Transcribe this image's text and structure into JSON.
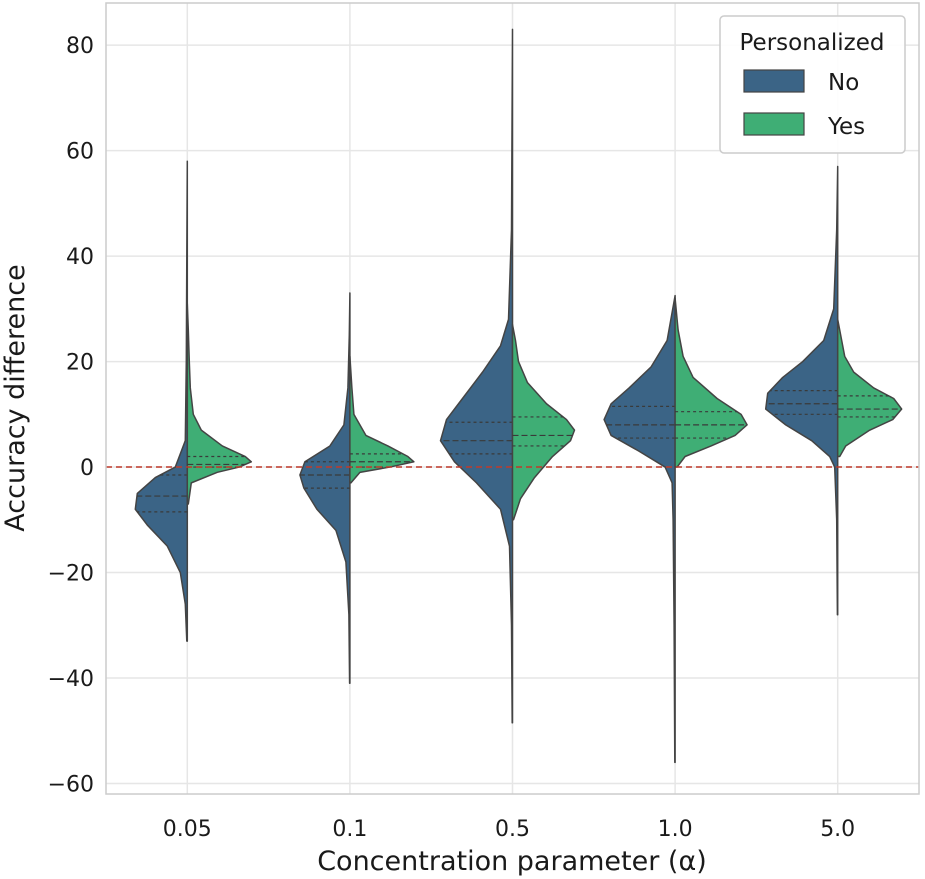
{
  "chart_data": {
    "type": "violin",
    "xlabel": "Concentration parameter (α)",
    "ylabel": "Accuracy difference",
    "categories": [
      "0.05",
      "0.1",
      "0.5",
      "1.0",
      "5.0"
    ],
    "ylim": [
      -62,
      88
    ],
    "yticks": [
      -60,
      -40,
      -20,
      0,
      20,
      40,
      60,
      80
    ],
    "ytick_labels": [
      "−60",
      "−40",
      "−20",
      "0",
      "20",
      "40",
      "60",
      "80"
    ],
    "grid": true,
    "reference_line": {
      "y": 0,
      "color": "#c0392b",
      "style": "dashed"
    },
    "legend": {
      "title": "Personalized",
      "position": "top-right",
      "entries": [
        {
          "label": "No",
          "color": "#3b6486"
        },
        {
          "label": "Yes",
          "color": "#3fae75"
        }
      ]
    },
    "series": [
      {
        "name": "No",
        "color": "#3b6486",
        "side": "left",
        "violins": [
          {
            "min": -33,
            "max": 58,
            "q1": -8.5,
            "median": -5.5,
            "q3": -1.5,
            "profile": [
              [
                -33,
                0.5
              ],
              [
                -26,
                2
              ],
              [
                -20,
                7
              ],
              [
                -15,
                20
              ],
              [
                -11,
                40
              ],
              [
                -8,
                52
              ],
              [
                -5,
                50
              ],
              [
                -2,
                32
              ],
              [
                0,
                12
              ],
              [
                5,
                2
              ],
              [
                20,
                1
              ],
              [
                40,
                0.5
              ],
              [
                58,
                0
              ]
            ]
          },
          {
            "min": -41,
            "max": 33,
            "q1": -4,
            "median": -1.5,
            "q3": 1,
            "profile": [
              [
                -41,
                0.3
              ],
              [
                -28,
                1
              ],
              [
                -18,
                4
              ],
              [
                -12,
                14
              ],
              [
                -8,
                33
              ],
              [
                -4,
                46
              ],
              [
                -1.5,
                50
              ],
              [
                1,
                45
              ],
              [
                4,
                20
              ],
              [
                8,
                6
              ],
              [
                15,
                2
              ],
              [
                25,
                0.6
              ],
              [
                33,
                0
              ]
            ]
          },
          {
            "min": -48.5,
            "max": 83,
            "q1": 2.5,
            "median": 5,
            "q3": 8.5,
            "profile": [
              [
                -48.5,
                0.3
              ],
              [
                -30,
                1
              ],
              [
                -15,
                3
              ],
              [
                -8,
                12
              ],
              [
                -3,
                36
              ],
              [
                1,
                58
              ],
              [
                5,
                72
              ],
              [
                9,
                66
              ],
              [
                13,
                50
              ],
              [
                18,
                30
              ],
              [
                23,
                12
              ],
              [
                28,
                4
              ],
              [
                45,
                1
              ],
              [
                83,
                0
              ]
            ]
          },
          {
            "min": -56,
            "max": 32.5,
            "q1": 5.5,
            "median": 8,
            "q3": 11.5,
            "profile": [
              [
                -56,
                0.3
              ],
              [
                -30,
                1
              ],
              [
                -10,
                2
              ],
              [
                -3,
                3
              ],
              [
                0,
                10
              ],
              [
                3,
                36
              ],
              [
                6,
                64
              ],
              [
                9,
                71
              ],
              [
                12,
                64
              ],
              [
                15,
                46
              ],
              [
                19,
                24
              ],
              [
                24,
                8
              ],
              [
                32.5,
                0
              ]
            ]
          },
          {
            "min": -28,
            "max": 57,
            "q1": 10,
            "median": 12,
            "q3": 14.5,
            "profile": [
              [
                -28,
                0.3
              ],
              [
                -10,
                1
              ],
              [
                0,
                3
              ],
              [
                2,
                8
              ],
              [
                5,
                26
              ],
              [
                8,
                52
              ],
              [
                11,
                72
              ],
              [
                14,
                70
              ],
              [
                17,
                55
              ],
              [
                20,
                35
              ],
              [
                24,
                14
              ],
              [
                30,
                4
              ],
              [
                45,
                1
              ],
              [
                57,
                0
              ]
            ]
          }
        ]
      },
      {
        "name": "Yes",
        "color": "#3fae75",
        "side": "right",
        "violins": [
          {
            "min": -7,
            "max": 31,
            "q1": 0,
            "median": 0.5,
            "q3": 2,
            "profile": [
              [
                -7,
                1
              ],
              [
                -3,
                4
              ],
              [
                -1,
                30
              ],
              [
                0,
                52
              ],
              [
                1,
                64
              ],
              [
                2,
                58
              ],
              [
                4,
                35
              ],
              [
                7,
                14
              ],
              [
                10,
                6
              ],
              [
                15,
                3
              ],
              [
                20,
                2
              ],
              [
                26,
                1
              ],
              [
                31,
                0
              ]
            ]
          },
          {
            "min": -3,
            "max": 21,
            "q1": 0,
            "median": 1,
            "q3": 2.5,
            "profile": [
              [
                -3,
                1
              ],
              [
                -1,
                10
              ],
              [
                0,
                40
              ],
              [
                1,
                64
              ],
              [
                2,
                58
              ],
              [
                4,
                38
              ],
              [
                6,
                16
              ],
              [
                10,
                4
              ],
              [
                15,
                2
              ],
              [
                21,
                0
              ]
            ]
          },
          {
            "min": -10,
            "max": 27,
            "q1": 4,
            "median": 6,
            "q3": 9.5,
            "profile": [
              [
                -10,
                1
              ],
              [
                -6,
                8
              ],
              [
                -2,
                22
              ],
              [
                2,
                40
              ],
              [
                5,
                58
              ],
              [
                7,
                62
              ],
              [
                9,
                54
              ],
              [
                12,
                34
              ],
              [
                16,
                15
              ],
              [
                20,
                6
              ],
              [
                24,
                3
              ],
              [
                27,
                0
              ]
            ]
          },
          {
            "min": 0,
            "max": 32,
            "q1": 5.5,
            "median": 8,
            "q3": 10.5,
            "profile": [
              [
                0,
                2
              ],
              [
                2,
                10
              ],
              [
                4,
                36
              ],
              [
                6,
                60
              ],
              [
                8,
                72
              ],
              [
                10,
                66
              ],
              [
                13,
                42
              ],
              [
                17,
                18
              ],
              [
                21,
                8
              ],
              [
                26,
                3
              ],
              [
                32,
                0
              ]
            ]
          },
          {
            "min": 2,
            "max": 28,
            "q1": 9.5,
            "median": 11,
            "q3": 13.5,
            "profile": [
              [
                2,
                2
              ],
              [
                4,
                8
              ],
              [
                7,
                32
              ],
              [
                9,
                55
              ],
              [
                11,
                64
              ],
              [
                13,
                56
              ],
              [
                15,
                36
              ],
              [
                18,
                16
              ],
              [
                21,
                7
              ],
              [
                24,
                4
              ],
              [
                28,
                0
              ]
            ]
          }
        ]
      }
    ]
  }
}
